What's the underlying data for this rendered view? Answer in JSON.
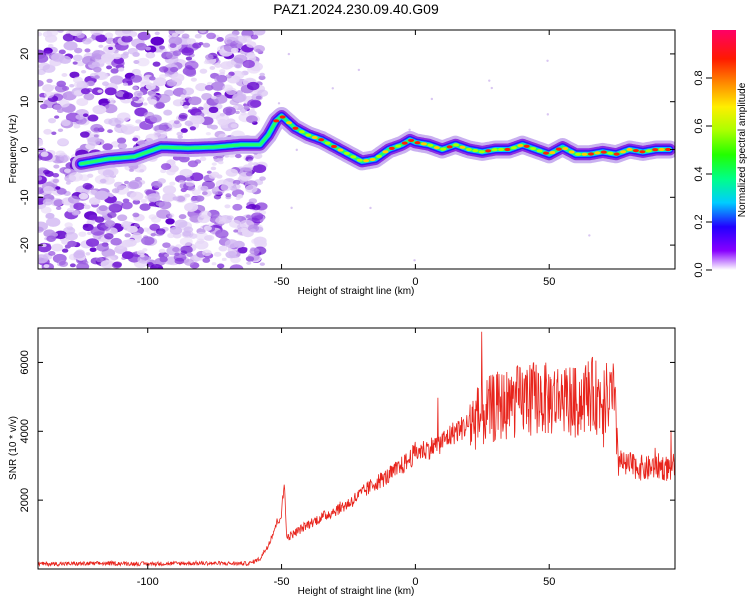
{
  "title": "PAZ1.2024.230.09.40.G09",
  "chart_data": [
    {
      "type": "heatmap",
      "xlabel": "Height of straight line (km)",
      "ylabel": "Frequency (Hz)",
      "xlim": [
        -141,
        97
      ],
      "ylim": [
        -25,
        25
      ],
      "xticks": [
        -100,
        -50,
        0,
        50
      ],
      "yticks": [
        -20,
        -10,
        0,
        10,
        20
      ],
      "colorbar": {
        "label": "Normalized spectral amplitude",
        "range": [
          0,
          1
        ],
        "ticks": [
          "0.0",
          "0.2",
          "0.4",
          "0.6",
          "0.8"
        ]
      },
      "ridge": {
        "x": [
          -125,
          -115,
          -105,
          -95,
          -85,
          -75,
          -65,
          -58,
          -55,
          -52,
          -50,
          -45,
          -40,
          -35,
          -30,
          -25,
          -20,
          -15,
          -10,
          -5,
          -2,
          0,
          5,
          10,
          15,
          20,
          25,
          30,
          35,
          40,
          45,
          50,
          55,
          60,
          65,
          70,
          75,
          80,
          85,
          90,
          95
        ],
        "y": [
          -3,
          -2,
          -1.5,
          0.5,
          0.3,
          0.5,
          1,
          1,
          3,
          6,
          7,
          4.5,
          3,
          2,
          0.5,
          -1,
          -2.5,
          -2,
          0,
          1,
          2,
          1.5,
          1,
          0,
          1,
          0,
          -0.5,
          0,
          0,
          1,
          0,
          -1,
          0.5,
          -1,
          -1,
          -0.5,
          -1,
          0,
          -0.5,
          0,
          0
        ]
      }
    },
    {
      "type": "line",
      "xlabel": "Height of straight line (km)",
      "ylabel": "SNR (10 * v/v)",
      "xlim": [
        -141,
        97
      ],
      "ylim": [
        0,
        7000
      ],
      "xticks": [
        -100,
        -50,
        0,
        50
      ],
      "yticks": [
        2000,
        4000,
        6000
      ],
      "series": [
        {
          "color": "#e8241c",
          "x": [
            -141,
            -130,
            -120,
            -110,
            -100,
            -90,
            -80,
            -70,
            -62,
            -58,
            -55,
            -52,
            -50,
            -49,
            -48,
            -46,
            -44,
            -40,
            -35,
            -30,
            -25,
            -20,
            -15,
            -10,
            -5,
            -2,
            0,
            5,
            10,
            15,
            20,
            25,
            30,
            35,
            40,
            45,
            50,
            55,
            60,
            65,
            70,
            74,
            76,
            78,
            82,
            86,
            90,
            95,
            97
          ],
          "y": [
            150,
            150,
            160,
            160,
            150,
            160,
            170,
            160,
            160,
            300,
            700,
            1300,
            1600,
            2500,
            900,
            1000,
            1100,
            1300,
            1500,
            1700,
            1900,
            2200,
            2500,
            2700,
            3000,
            3200,
            3400,
            3500,
            3700,
            4000,
            4200,
            4500,
            4700,
            4800,
            4900,
            5000,
            4900,
            5000,
            4800,
            5100,
            4900,
            5000,
            3200,
            3000,
            3000,
            2900,
            3000,
            2900,
            3000
          ]
        }
      ]
    }
  ]
}
